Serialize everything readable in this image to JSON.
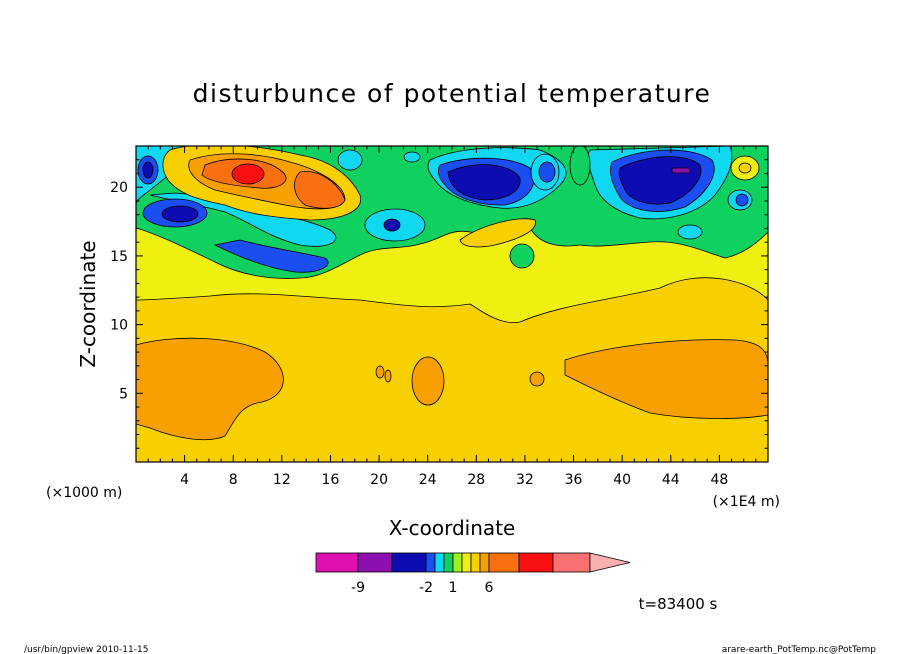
{
  "chart_data": {
    "type": "heatmap",
    "title": "disturbunce of potential temperature",
    "xlabel": "X-coordinate",
    "ylabel": "Z-coordinate",
    "x_unit_left": "(×1000 m)",
    "x_unit_right": "(×1E4 m)",
    "xlim": [
      0,
      52
    ],
    "ylim": [
      0,
      23
    ],
    "x_ticks": [
      4,
      8,
      12,
      16,
      20,
      24,
      28,
      32,
      36,
      40,
      44,
      48
    ],
    "y_ticks": [
      5,
      10,
      15,
      20
    ],
    "time_label": "t=83400 s",
    "colorbar": {
      "levels": [
        -13,
        -9,
        -5,
        -2,
        -1,
        0,
        1,
        2,
        3,
        4,
        6,
        9,
        12
      ],
      "labels": [
        -9,
        -2,
        1,
        6
      ],
      "colors": [
        "#e010b0",
        "#8c10b0",
        "#0c0cb0",
        "#1a4ef0",
        "#10d8f0",
        "#10d060",
        "#a0f020",
        "#f0f010",
        "#f8d000",
        "#f8a000",
        "#f87010",
        "#f81010",
        "#f87070",
        "#f8b0b0"
      ]
    },
    "regions": [
      {
        "name": "lower-warm-layer",
        "value": 2.5,
        "color": "#f8d000"
      },
      {
        "name": "lower-left-orange-blob",
        "value": 3.5,
        "color": "#f8a000"
      },
      {
        "name": "lower-right-orange-blob",
        "value": 3.5,
        "color": "#f8a000"
      },
      {
        "name": "mid-yellow-band",
        "value": 1.5,
        "color": "#f0f010"
      },
      {
        "name": "upper-left-warm-core",
        "value": 7,
        "color": "#f81010"
      },
      {
        "name": "upper-mid-cold-core",
        "value": -5,
        "color": "#0c0cb0"
      },
      {
        "name": "upper-right-cold-core",
        "value": -5,
        "color": "#0c0cb0"
      }
    ]
  },
  "footer": {
    "left": "/usr/bin/gpview  2010-11-15",
    "right": "arare-earth_PotTemp.nc@PotTemp"
  }
}
